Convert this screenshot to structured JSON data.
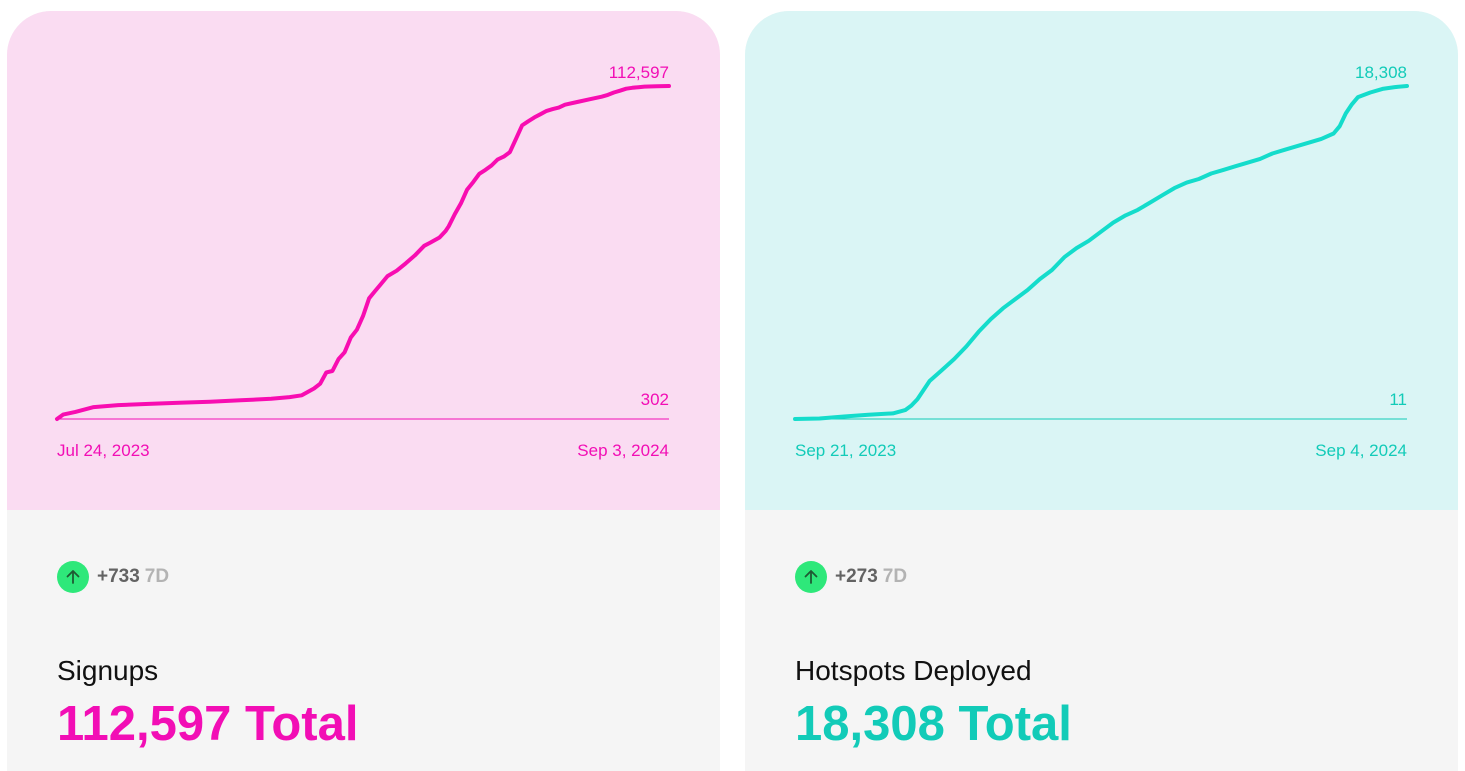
{
  "cards": [
    {
      "id": "signups",
      "title": "Signups",
      "total_number": "112,597",
      "total_suffix": " Total",
      "change": "+733",
      "change_period": "7D",
      "change_icon": "arrow-up-icon",
      "colors": {
        "accent": "#f20eb5",
        "chart_bg": "#fadcf2",
        "line": "#f80db1",
        "icon_bg": "#2ee87a",
        "icon_arrow": "#1f5a33"
      },
      "chart_data": {
        "type": "line",
        "x_start_label": "Jul 24, 2023",
        "x_end_label": "Sep 3, 2024",
        "y_max_label": "112,597",
        "y_min_label": "302",
        "ylim": [
          302,
          112597
        ],
        "points": [
          [
            0.0,
            302
          ],
          [
            0.01,
            1800
          ],
          [
            0.03,
            2700
          ],
          [
            0.06,
            4300
          ],
          [
            0.1,
            5000
          ],
          [
            0.15,
            5400
          ],
          [
            0.2,
            5800
          ],
          [
            0.25,
            6100
          ],
          [
            0.3,
            6600
          ],
          [
            0.35,
            7100
          ],
          [
            0.38,
            7700
          ],
          [
            0.4,
            8300
          ],
          [
            0.42,
            10600
          ],
          [
            0.43,
            12200
          ],
          [
            0.44,
            16000
          ],
          [
            0.45,
            16500
          ],
          [
            0.46,
            20500
          ],
          [
            0.47,
            22800
          ],
          [
            0.48,
            27800
          ],
          [
            0.49,
            30400
          ],
          [
            0.5,
            35000
          ],
          [
            0.51,
            41000
          ],
          [
            0.52,
            43500
          ],
          [
            0.53,
            46000
          ],
          [
            0.54,
            48500
          ],
          [
            0.555,
            50300
          ],
          [
            0.57,
            52800
          ],
          [
            0.585,
            55500
          ],
          [
            0.6,
            58700
          ],
          [
            0.61,
            59800
          ],
          [
            0.625,
            61500
          ],
          [
            0.635,
            63700
          ],
          [
            0.64,
            65300
          ],
          [
            0.65,
            69400
          ],
          [
            0.66,
            73000
          ],
          [
            0.67,
            77600
          ],
          [
            0.68,
            80200
          ],
          [
            0.69,
            83000
          ],
          [
            0.7,
            84300
          ],
          [
            0.71,
            85800
          ],
          [
            0.72,
            87800
          ],
          [
            0.73,
            88800
          ],
          [
            0.74,
            90300
          ],
          [
            0.75,
            94800
          ],
          [
            0.76,
            99300
          ],
          [
            0.77,
            100700
          ],
          [
            0.78,
            102000
          ],
          [
            0.79,
            103100
          ],
          [
            0.8,
            104200
          ],
          [
            0.81,
            104800
          ],
          [
            0.82,
            105300
          ],
          [
            0.83,
            106300
          ],
          [
            0.85,
            107200
          ],
          [
            0.87,
            108100
          ],
          [
            0.89,
            109000
          ],
          [
            0.9,
            109600
          ],
          [
            0.91,
            110400
          ],
          [
            0.92,
            111000
          ],
          [
            0.93,
            111700
          ],
          [
            0.94,
            112000
          ],
          [
            0.95,
            112200
          ],
          [
            0.96,
            112400
          ],
          [
            0.98,
            112500
          ],
          [
            1.0,
            112597
          ]
        ]
      }
    },
    {
      "id": "hotspots",
      "title": "Hotspots Deployed",
      "total_number": "18,308",
      "total_suffix": " Total",
      "change": "+273",
      "change_period": "7D",
      "change_icon": "arrow-up-icon",
      "colors": {
        "accent": "#12cbb8",
        "chart_bg": "#daf5f5",
        "line": "#14dccb",
        "icon_bg": "#2ee87a",
        "icon_arrow": "#1f5a33"
      },
      "chart_data": {
        "type": "line",
        "x_start_label": "Sep 21, 2023",
        "x_end_label": "Sep 4, 2024",
        "y_max_label": "18,308",
        "y_min_label": "11",
        "ylim": [
          11,
          18308
        ],
        "points": [
          [
            0.0,
            11
          ],
          [
            0.04,
            40
          ],
          [
            0.08,
            150
          ],
          [
            0.12,
            250
          ],
          [
            0.16,
            320
          ],
          [
            0.18,
            500
          ],
          [
            0.19,
            750
          ],
          [
            0.2,
            1100
          ],
          [
            0.21,
            1600
          ],
          [
            0.22,
            2100
          ],
          [
            0.24,
            2700
          ],
          [
            0.26,
            3300
          ],
          [
            0.28,
            4000
          ],
          [
            0.3,
            4800
          ],
          [
            0.32,
            5500
          ],
          [
            0.34,
            6100
          ],
          [
            0.36,
            6600
          ],
          [
            0.38,
            7100
          ],
          [
            0.4,
            7700
          ],
          [
            0.42,
            8200
          ],
          [
            0.44,
            8900
          ],
          [
            0.46,
            9400
          ],
          [
            0.48,
            9800
          ],
          [
            0.5,
            10300
          ],
          [
            0.52,
            10800
          ],
          [
            0.54,
            11200
          ],
          [
            0.56,
            11500
          ],
          [
            0.58,
            11900
          ],
          [
            0.6,
            12300
          ],
          [
            0.62,
            12700
          ],
          [
            0.64,
            13000
          ],
          [
            0.66,
            13200
          ],
          [
            0.68,
            13500
          ],
          [
            0.7,
            13700
          ],
          [
            0.72,
            13900
          ],
          [
            0.74,
            14100
          ],
          [
            0.76,
            14300
          ],
          [
            0.78,
            14600
          ],
          [
            0.8,
            14800
          ],
          [
            0.82,
            15000
          ],
          [
            0.84,
            15200
          ],
          [
            0.86,
            15400
          ],
          [
            0.88,
            15700
          ],
          [
            0.89,
            16100
          ],
          [
            0.9,
            16800
          ],
          [
            0.91,
            17300
          ],
          [
            0.92,
            17700
          ],
          [
            0.94,
            17950
          ],
          [
            0.96,
            18150
          ],
          [
            0.98,
            18250
          ],
          [
            1.0,
            18308
          ]
        ]
      }
    }
  ]
}
